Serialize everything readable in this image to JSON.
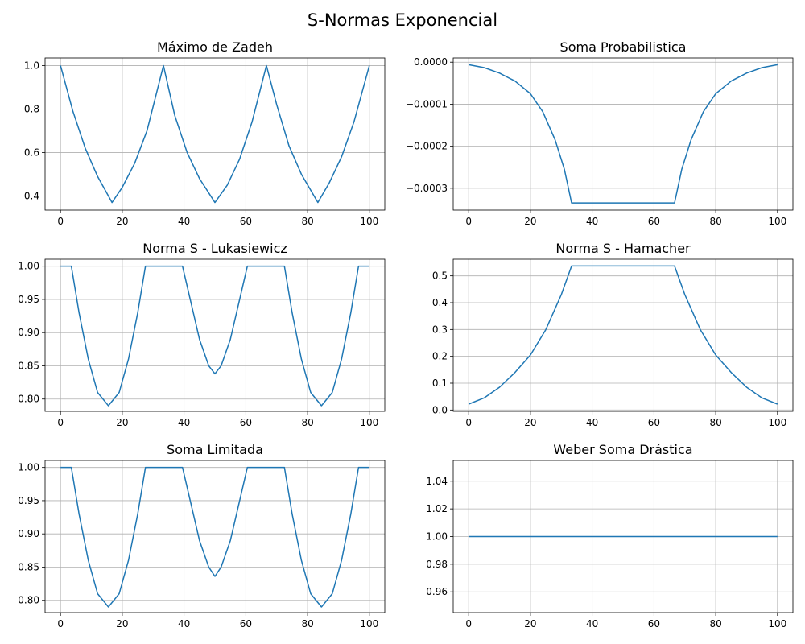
{
  "figure": {
    "title": "S-Normas Exponencial"
  },
  "chart_data": [
    {
      "type": "line",
      "title": "Máximo de Zadeh",
      "xlim": [
        -5,
        105
      ],
      "ylim": [
        0.335,
        1.035
      ],
      "xticks": [
        0,
        20,
        40,
        60,
        80,
        100
      ],
      "xtick_labels": [
        "0",
        "20",
        "40",
        "60",
        "80",
        "100"
      ],
      "yticks": [
        0.4,
        0.6,
        0.8,
        1.0
      ],
      "ytick_labels": [
        "0.4",
        "0.6",
        "0.8",
        "1.0"
      ],
      "grid": true,
      "series": [
        {
          "x": [
            0,
            4,
            8,
            12,
            16.67,
            20,
            24,
            28,
            33.33,
            37,
            41,
            45,
            50,
            54,
            58,
            62,
            66.67,
            70,
            74,
            78,
            83.33,
            87,
            91,
            95,
            100
          ],
          "y": [
            1.0,
            0.79,
            0.62,
            0.49,
            0.37,
            0.44,
            0.55,
            0.7,
            1.0,
            0.77,
            0.6,
            0.48,
            0.37,
            0.45,
            0.57,
            0.74,
            1.0,
            0.82,
            0.63,
            0.5,
            0.37,
            0.46,
            0.58,
            0.74,
            1.0
          ]
        }
      ]
    },
    {
      "type": "line",
      "title": "Soma Probabilistica",
      "xlim": [
        -5,
        105
      ],
      "ylim": [
        -0.000352,
        1e-05
      ],
      "xticks": [
        0,
        20,
        40,
        60,
        80,
        100
      ],
      "xtick_labels": [
        "0",
        "20",
        "40",
        "60",
        "80",
        "100"
      ],
      "yticks": [
        0.0,
        -0.0001,
        -0.0002,
        -0.0003
      ],
      "ytick_labels": [
        "0.0000",
        "−0.0001",
        "−0.0002",
        "−0.0003"
      ],
      "grid": true,
      "series": [
        {
          "x": [
            0,
            5,
            10,
            15,
            20,
            24,
            28,
            31,
            33.33,
            40,
            50,
            60,
            66.67,
            69,
            72,
            76,
            80,
            85,
            90,
            95,
            100
          ],
          "y": [
            -6e-06,
            -1.3e-05,
            -2.6e-05,
            -4.5e-05,
            -7.5e-05,
            -0.000118,
            -0.000185,
            -0.000255,
            -0.000335,
            -0.000335,
            -0.000335,
            -0.000335,
            -0.000335,
            -0.000255,
            -0.000185,
            -0.000118,
            -7.5e-05,
            -4.5e-05,
            -2.6e-05,
            -1.3e-05,
            -6e-06
          ]
        }
      ]
    },
    {
      "type": "line",
      "title": "Norma S - Lukasiewicz",
      "xlim": [
        -5,
        105
      ],
      "ylim": [
        0.7815,
        1.0105
      ],
      "xticks": [
        0,
        20,
        40,
        60,
        80,
        100
      ],
      "xtick_labels": [
        "0",
        "20",
        "40",
        "60",
        "80",
        "100"
      ],
      "yticks": [
        0.8,
        0.85,
        0.9,
        0.95,
        1.0
      ],
      "ytick_labels": [
        "0.80",
        "0.85",
        "0.90",
        "0.95",
        "1.00"
      ],
      "grid": true,
      "series": [
        {
          "x": [
            0,
            3.5,
            6,
            9,
            12,
            15.5,
            19,
            22,
            25,
            27.5,
            39.5,
            42,
            45,
            48,
            50,
            52,
            55,
            58,
            60.5,
            72.5,
            75,
            78,
            81,
            84.5,
            88,
            91,
            94,
            96.5,
            100
          ],
          "y": [
            1.0,
            1.0,
            0.93,
            0.86,
            0.81,
            0.79,
            0.81,
            0.86,
            0.93,
            1.0,
            1.0,
            0.95,
            0.89,
            0.85,
            0.838,
            0.85,
            0.89,
            0.95,
            1.0,
            1.0,
            0.93,
            0.86,
            0.81,
            0.79,
            0.81,
            0.86,
            0.93,
            1.0,
            1.0
          ]
        }
      ]
    },
    {
      "type": "line",
      "title": "Norma S - Hamacher",
      "xlim": [
        -5,
        105
      ],
      "ylim": [
        -0.005,
        0.562
      ],
      "xticks": [
        0,
        20,
        40,
        60,
        80,
        100
      ],
      "xtick_labels": [
        "0",
        "20",
        "40",
        "60",
        "80",
        "100"
      ],
      "yticks": [
        0.0,
        0.1,
        0.2,
        0.3,
        0.4,
        0.5
      ],
      "ytick_labels": [
        "0.0",
        "0.1",
        "0.2",
        "0.3",
        "0.4",
        "0.5"
      ],
      "grid": true,
      "series": [
        {
          "x": [
            0,
            5,
            10,
            15,
            20,
            25,
            30,
            33.33,
            40,
            50,
            60,
            66.67,
            70,
            75,
            80,
            85,
            90,
            95,
            100
          ],
          "y": [
            0.022,
            0.045,
            0.085,
            0.14,
            0.205,
            0.3,
            0.43,
            0.537,
            0.537,
            0.537,
            0.537,
            0.537,
            0.43,
            0.3,
            0.205,
            0.14,
            0.085,
            0.045,
            0.022
          ]
        }
      ]
    },
    {
      "type": "line",
      "title": "Soma Limitada",
      "xlim": [
        -5,
        105
      ],
      "ylim": [
        0.7815,
        1.0105
      ],
      "xticks": [
        0,
        20,
        40,
        60,
        80,
        100
      ],
      "xtick_labels": [
        "0",
        "20",
        "40",
        "60",
        "80",
        "100"
      ],
      "yticks": [
        0.8,
        0.85,
        0.9,
        0.95,
        1.0
      ],
      "ytick_labels": [
        "0.80",
        "0.85",
        "0.90",
        "0.95",
        "1.00"
      ],
      "grid": true,
      "series": [
        {
          "x": [
            0,
            3.5,
            6,
            9,
            12,
            15.5,
            19,
            22,
            25,
            27.5,
            39.5,
            42,
            45,
            48,
            50,
            52,
            55,
            58,
            60.5,
            72.5,
            75,
            78,
            81,
            84.5,
            88,
            91,
            94,
            96.5,
            100
          ],
          "y": [
            1.0,
            1.0,
            0.93,
            0.86,
            0.81,
            0.79,
            0.81,
            0.86,
            0.93,
            1.0,
            1.0,
            0.95,
            0.89,
            0.85,
            0.836,
            0.85,
            0.89,
            0.95,
            1.0,
            1.0,
            0.93,
            0.86,
            0.81,
            0.79,
            0.81,
            0.86,
            0.93,
            1.0,
            1.0
          ]
        }
      ]
    },
    {
      "type": "line",
      "title": "Weber Soma Drástica",
      "xlim": [
        -5,
        105
      ],
      "ylim": [
        0.945,
        1.055
      ],
      "xticks": [
        0,
        20,
        40,
        60,
        80,
        100
      ],
      "xtick_labels": [
        "0",
        "20",
        "40",
        "60",
        "80",
        "100"
      ],
      "yticks": [
        0.96,
        0.98,
        1.0,
        1.02,
        1.04
      ],
      "ytick_labels": [
        "0.96",
        "0.98",
        "1.00",
        "1.02",
        "1.04"
      ],
      "grid": true,
      "series": [
        {
          "x": [
            0,
            100
          ],
          "y": [
            1.0,
            1.0
          ]
        }
      ]
    }
  ]
}
